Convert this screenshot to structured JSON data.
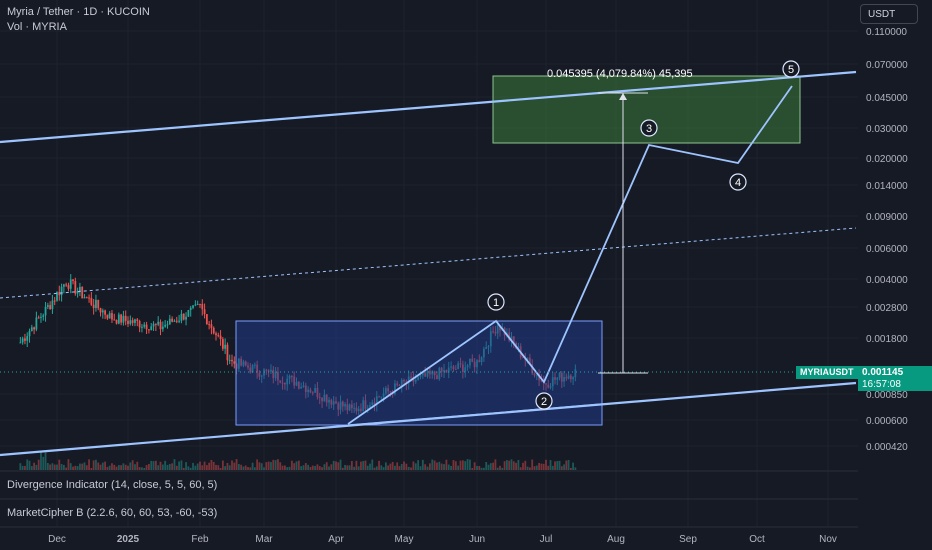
{
  "header": {
    "title": "Myria / Tether · 1D · KUCOIN",
    "volume_label": "Vol · MYRIA"
  },
  "currency_button": "USDT",
  "price_axis": {
    "ticks": [
      "0.110000",
      "0.070000",
      "0.045000",
      "0.030000",
      "0.020000",
      "0.014000",
      "0.009000",
      "0.006000",
      "0.004000",
      "0.002800",
      "0.001800",
      "0.000850",
      "0.000600",
      "0.000420"
    ]
  },
  "current_price": {
    "symbol": "MYRIAUSDT",
    "value": "0.001145",
    "countdown": "16:57:08"
  },
  "time_axis": {
    "ticks": [
      "Dec",
      "2025",
      "Feb",
      "Mar",
      "Apr",
      "May",
      "Jun",
      "Jul",
      "Aug",
      "Sep",
      "Oct",
      "Nov"
    ]
  },
  "indicators": [
    "Divergence Indicator (14, close, 5, 5, 60, 5)",
    "MarketCipher B (2.2.6, 60, 60, 53, -60, -53)"
  ],
  "measure_label": "0.045395 (4,079.84%) 45,395",
  "wave_labels": [
    "1",
    "2",
    "3",
    "4",
    "5"
  ],
  "colors": {
    "background": "#161a25",
    "up": "#26a69a",
    "down": "#ef5350",
    "trendline": "#9ec4ff",
    "accumulation_box": "#1f3a8a",
    "target_box": "#3a7a3a",
    "price_tag": "#089981"
  },
  "chart_data": {
    "type": "candlestick",
    "scale": "log",
    "price_ticks": [
      0.11,
      0.07,
      0.045,
      0.03,
      0.02,
      0.014,
      0.009,
      0.006,
      0.004,
      0.0028,
      0.0018,
      0.00085,
      0.0006,
      0.00042
    ],
    "series_close_approx": [
      {
        "date": "2024-11-15",
        "close": 0.0017
      },
      {
        "date": "2024-12-05",
        "close": 0.0039
      },
      {
        "date": "2024-12-25",
        "close": 0.0024
      },
      {
        "date": "2025-01-15",
        "close": 0.0021
      },
      {
        "date": "2025-02-01",
        "close": 0.0028
      },
      {
        "date": "2025-02-15",
        "close": 0.0013
      },
      {
        "date": "2025-03-15",
        "close": 0.001
      },
      {
        "date": "2025-04-08",
        "close": 0.00068
      },
      {
        "date": "2025-05-01",
        "close": 0.00098
      },
      {
        "date": "2025-06-01",
        "close": 0.0013
      },
      {
        "date": "2025-06-10",
        "close": 0.0022
      },
      {
        "date": "2025-06-30",
        "close": 0.00098
      },
      {
        "date": "2025-07-14",
        "close": 0.001145
      }
    ],
    "projected_path": [
      {
        "label": "1",
        "date": "2025-06-10",
        "price": 0.0024
      },
      {
        "label": "2",
        "date": "2025-07-01",
        "price": 0.00098
      },
      {
        "label": "3",
        "date": "2025-08-14",
        "price": 0.025
      },
      {
        "label": "4",
        "date": "2025-09-22",
        "price": 0.018
      },
      {
        "label": "5",
        "date": "2025-10-18",
        "price": 0.055
      }
    ],
    "measurement": {
      "change": 0.045395,
      "percent": 4079.84,
      "ticks": 45395
    },
    "current_price": 0.001145,
    "legend": "none"
  }
}
